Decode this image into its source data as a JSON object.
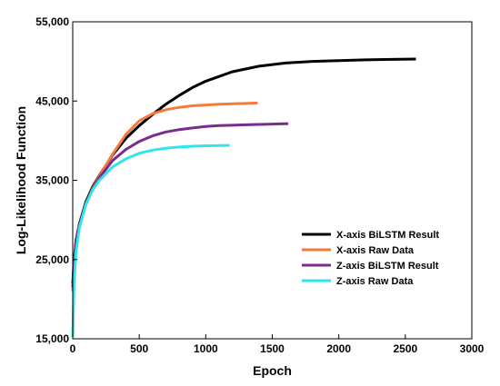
{
  "chart_data": {
    "type": "line",
    "title": "",
    "xlabel": "Epoch",
    "ylabel": "Log-Likelihood Function",
    "xlim": [
      0,
      3000
    ],
    "ylim": [
      15000,
      55000
    ],
    "x_ticks": [
      0,
      500,
      1000,
      1500,
      2000,
      2500,
      3000
    ],
    "y_ticks": [
      15000,
      25000,
      35000,
      45000,
      55000
    ],
    "x_tick_labels": [
      "0",
      "500",
      "1000",
      "1500",
      "2000",
      "2500",
      "3000"
    ],
    "y_tick_labels": [
      "15,000",
      "25,000",
      "35,000",
      "45,000",
      "55,000"
    ],
    "grid": false,
    "legend_position": "lower-right",
    "series": [
      {
        "name": "X-axis BiLSTM Result",
        "color": "#000000",
        "x": [
          0,
          10,
          25,
          50,
          100,
          150,
          200,
          300,
          400,
          500,
          600,
          700,
          800,
          900,
          1000,
          1200,
          1400,
          1600,
          1800,
          2000,
          2200,
          2400,
          2580
        ],
        "y": [
          22000,
          25000,
          27400,
          29500,
          32300,
          34200,
          35600,
          38200,
          40300,
          41900,
          43300,
          44600,
          45700,
          46700,
          47500,
          48700,
          49400,
          49800,
          50000,
          50100,
          50200,
          50250,
          50300
        ]
      },
      {
        "name": "X-axis Raw Data",
        "color": "#f47a3d",
        "x": [
          0,
          10,
          25,
          50,
          100,
          150,
          200,
          300,
          400,
          500,
          600,
          700,
          800,
          900,
          1000,
          1100,
          1200,
          1300,
          1390
        ],
        "y": [
          21000,
          24500,
          27000,
          29300,
          32000,
          34000,
          35500,
          38300,
          40800,
          42500,
          43400,
          43900,
          44200,
          44400,
          44500,
          44600,
          44650,
          44700,
          44750
        ]
      },
      {
        "name": "Z-axis BiLSTM Result",
        "color": "#7b2a8e",
        "x": [
          0,
          10,
          25,
          50,
          100,
          150,
          200,
          300,
          400,
          500,
          600,
          700,
          800,
          900,
          1000,
          1100,
          1200,
          1300,
          1400,
          1500,
          1620
        ],
        "y": [
          21500,
          24500,
          27000,
          29300,
          32000,
          33900,
          35300,
          37500,
          38900,
          39900,
          40600,
          41100,
          41400,
          41600,
          41800,
          41900,
          41950,
          42000,
          42050,
          42100,
          42150
        ]
      },
      {
        "name": "Z-axis Raw Data",
        "color": "#2ee6f0",
        "x": [
          0,
          10,
          25,
          50,
          100,
          150,
          200,
          300,
          400,
          500,
          600,
          700,
          800,
          900,
          1000,
          1100,
          1180
        ],
        "y": [
          15200,
          22000,
          26000,
          29000,
          32000,
          33800,
          35000,
          36700,
          37700,
          38400,
          38800,
          39050,
          39200,
          39300,
          39350,
          39380,
          39400
        ]
      }
    ]
  }
}
